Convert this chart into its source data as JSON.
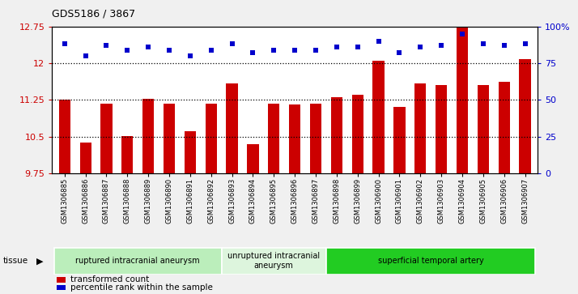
{
  "title": "GDS5186 / 3867",
  "samples": [
    "GSM1306885",
    "GSM1306886",
    "GSM1306887",
    "GSM1306888",
    "GSM1306889",
    "GSM1306890",
    "GSM1306891",
    "GSM1306892",
    "GSM1306893",
    "GSM1306894",
    "GSM1306895",
    "GSM1306896",
    "GSM1306897",
    "GSM1306898",
    "GSM1306899",
    "GSM1306900",
    "GSM1306901",
    "GSM1306902",
    "GSM1306903",
    "GSM1306904",
    "GSM1306905",
    "GSM1306906",
    "GSM1306907"
  ],
  "bar_values": [
    11.25,
    10.38,
    11.18,
    10.52,
    11.28,
    11.18,
    10.62,
    11.18,
    11.58,
    10.35,
    11.18,
    11.15,
    11.18,
    11.3,
    11.35,
    12.05,
    11.1,
    11.58,
    11.55,
    12.72,
    11.55,
    11.62,
    12.08
  ],
  "dot_values": [
    88,
    80,
    87,
    84,
    86,
    84,
    80,
    84,
    88,
    82,
    84,
    84,
    84,
    86,
    86,
    90,
    82,
    86,
    87,
    95,
    88,
    87,
    88
  ],
  "bar_color": "#cc0000",
  "dot_color": "#0000cc",
  "ylim_left": [
    9.75,
    12.75
  ],
  "ylim_right": [
    0,
    100
  ],
  "yticks_left": [
    9.75,
    10.5,
    11.25,
    12.0,
    12.75
  ],
  "ytick_labels_left": [
    "9.75",
    "10.5",
    "11.25",
    "12",
    "12.75"
  ],
  "yticks_right": [
    0,
    25,
    50,
    75,
    100
  ],
  "ytick_labels_right": [
    "0",
    "25",
    "50",
    "75",
    "100%"
  ],
  "hlines": [
    10.5,
    11.25,
    12.0
  ],
  "groups": [
    {
      "label": "ruptured intracranial aneurysm",
      "start": 0,
      "end": 8,
      "color": "#bbeebb"
    },
    {
      "label": "unruptured intracranial\naneurysm",
      "start": 8,
      "end": 13,
      "color": "#ddf5dd"
    },
    {
      "label": "superficial temporal artery",
      "start": 13,
      "end": 23,
      "color": "#22cc22"
    }
  ],
  "tissue_label": "tissue",
  "legend_bar_label": "transformed count",
  "legend_dot_label": "percentile rank within the sample",
  "fig_bg_color": "#f0f0f0"
}
